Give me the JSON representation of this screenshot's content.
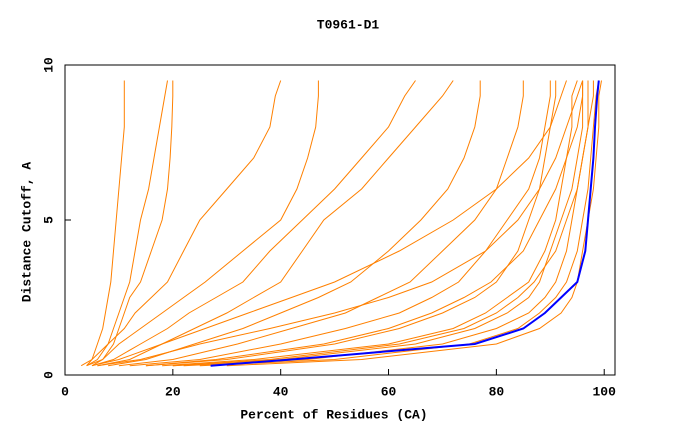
{
  "chart_data": {
    "type": "line",
    "title": "T0961-D1",
    "x_label": "Percent of Residues (CA)",
    "y_label": "Distance Cutoff, A",
    "xlim": [
      0,
      102
    ],
    "xticks": [
      0,
      20,
      40,
      60,
      80,
      100
    ],
    "ylim": [
      0,
      10
    ],
    "yticks": [
      0,
      5,
      10
    ],
    "y": [
      0.3,
      0.5,
      1,
      1.5,
      2,
      2.5,
      3,
      4,
      5,
      6,
      7,
      8,
      9,
      9.5
    ],
    "series": [
      {
        "color": "#ff8000",
        "x": [
          4,
          5,
          6,
          7,
          7.5,
          8,
          8.5,
          9,
          9.5,
          10,
          10.5,
          11,
          11,
          11
        ]
      },
      {
        "color": "#ff8000",
        "x": [
          4,
          6,
          8,
          9,
          10,
          11,
          12,
          13,
          14,
          15.5,
          16.5,
          17.5,
          18.5,
          19
        ]
      },
      {
        "color": "#ff8000",
        "x": [
          5,
          7,
          9,
          10,
          11,
          12,
          14,
          16,
          18,
          19,
          19.5,
          19.8,
          20,
          20
        ]
      },
      {
        "color": "#ff8000",
        "x": [
          3,
          5,
          8,
          11,
          13,
          16,
          19,
          22,
          25,
          30,
          35,
          38,
          39,
          40
        ]
      },
      {
        "color": "#ff8000",
        "x": [
          4,
          7,
          10,
          14,
          18,
          22,
          26,
          33,
          40,
          43,
          45,
          46.5,
          47,
          47
        ]
      },
      {
        "color": "#ff8000",
        "x": [
          5,
          9,
          14,
          19,
          23,
          28,
          33,
          38,
          44,
          50,
          55,
          60,
          63,
          65
        ]
      },
      {
        "color": "#ff8000",
        "x": [
          6,
          12,
          18,
          24,
          30,
          35,
          40,
          44,
          48,
          55,
          60,
          65,
          70,
          72
        ]
      },
      {
        "color": "#ff8000",
        "x": [
          8,
          15,
          24,
          33,
          40,
          47,
          53,
          60,
          66,
          71,
          74,
          76,
          77,
          77
        ]
      },
      {
        "color": "#ff8000",
        "x": [
          10,
          20,
          32,
          42,
          52,
          58,
          64,
          70,
          76,
          80,
          82,
          84,
          85,
          85
        ]
      },
      {
        "color": "#ff8000",
        "x": [
          12,
          25,
          40,
          52,
          62,
          68,
          73,
          78,
          82,
          86,
          88,
          89,
          90,
          90
        ]
      },
      {
        "color": "#ff8000",
        "x": [
          15,
          30,
          50,
          62,
          70,
          76,
          80,
          84,
          86,
          88,
          89,
          90,
          91,
          91
        ]
      },
      {
        "color": "#ff8000",
        "x": [
          18,
          35,
          60,
          72,
          78,
          82,
          86,
          89,
          91,
          92,
          93,
          94,
          94,
          95
        ]
      },
      {
        "color": "#ff8000",
        "x": [
          20,
          40,
          65,
          76,
          82,
          86,
          88,
          90,
          92,
          94,
          95,
          96,
          96,
          96
        ]
      },
      {
        "color": "#ff8000",
        "x": [
          22,
          45,
          70,
          80,
          86,
          89,
          91,
          93,
          94,
          95,
          96,
          97,
          97,
          97
        ]
      },
      {
        "color": "#ff8000",
        "x": [
          25,
          50,
          75,
          84,
          88,
          91,
          93,
          95,
          96,
          97,
          97.5,
          98,
          98.5,
          99
        ]
      },
      {
        "color": "#ff8000",
        "x": [
          30,
          55,
          80,
          88,
          92,
          94,
          95,
          96,
          97,
          98,
          98.5,
          99,
          99,
          99.5
        ]
      },
      {
        "color": "#ff8000",
        "x": [
          20,
          38,
          62,
          74,
          80,
          84,
          87,
          91,
          93,
          95,
          96,
          97,
          98,
          98
        ]
      },
      {
        "color": "#ff8000",
        "x": [
          15,
          28,
          48,
          60,
          68,
          74,
          79,
          85,
          88,
          91,
          93,
          95,
          96,
          96
        ]
      },
      {
        "color": "#ff8000",
        "x": [
          5,
          10,
          18,
          26,
          34,
          42,
          50,
          62,
          72,
          80,
          86,
          90,
          92,
          93
        ]
      },
      {
        "color": "#ff8000",
        "x": [
          6,
          14,
          25,
          38,
          50,
          60,
          68,
          78,
          84,
          88,
          91,
          93,
          95,
          96
        ]
      },
      {
        "color": "#0000ff",
        "x": [
          27,
          42,
          76,
          85,
          89,
          92,
          95,
          96.5,
          97,
          97.5,
          98,
          98.3,
          98.7,
          99
        ]
      }
    ]
  }
}
